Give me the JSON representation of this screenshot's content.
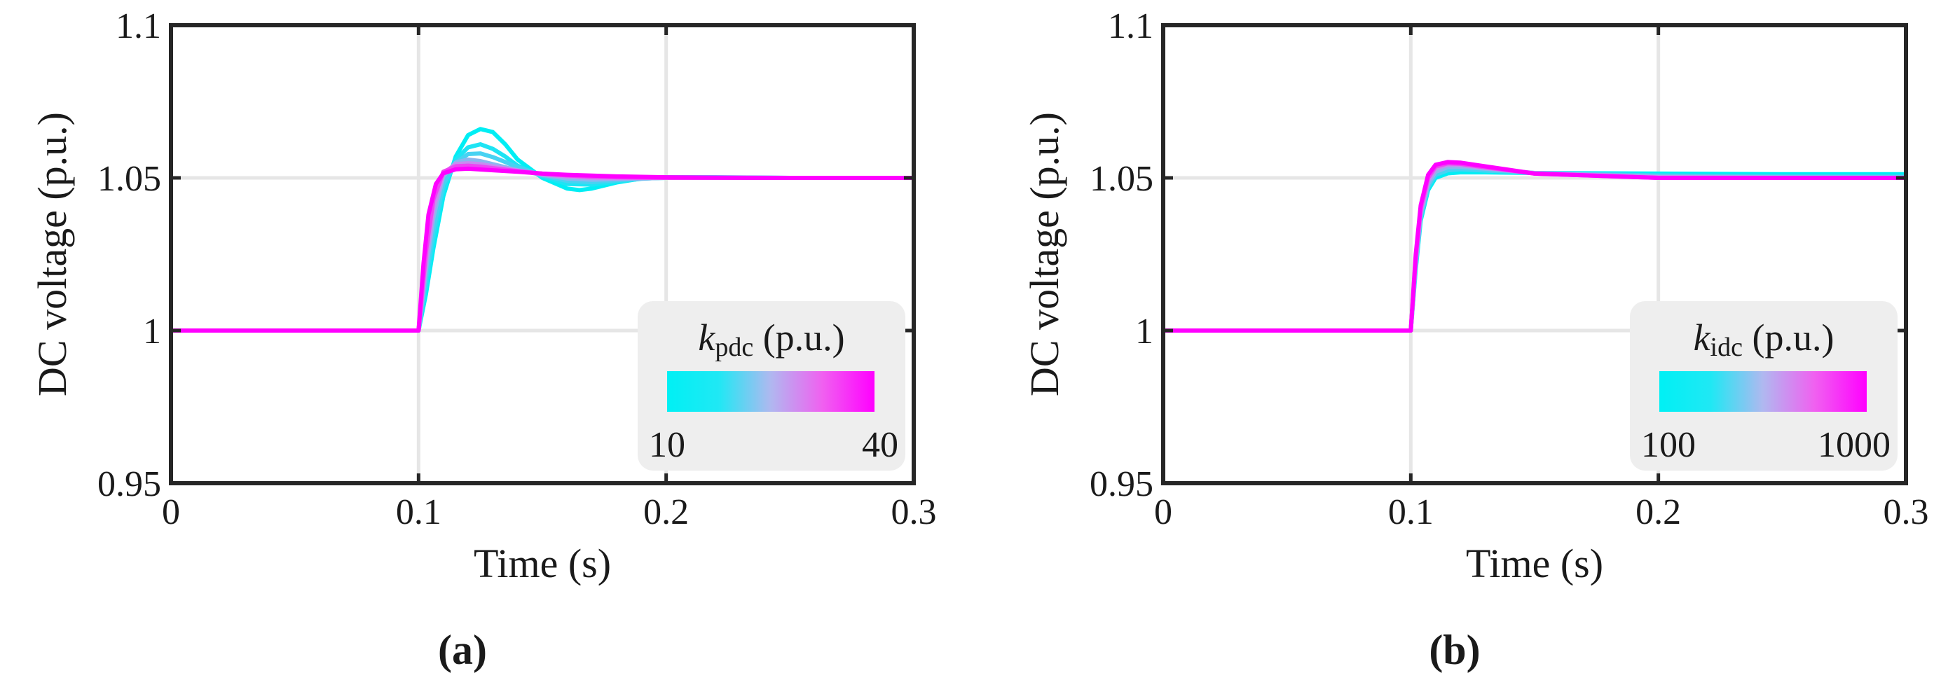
{
  "chart_data": [
    {
      "type": "line",
      "panel_label": "(a)",
      "xlabel": "Time (s)",
      "ylabel": "DC voltage (p.u.)",
      "xlim": [
        0,
        0.3
      ],
      "ylim": [
        0.95,
        1.1
      ],
      "xticks": [
        0,
        0.1,
        0.2,
        0.3
      ],
      "xtick_labels": [
        "0",
        "0.1",
        "0.2",
        "0.3"
      ],
      "yticks": [
        0.95,
        1,
        1.05,
        1.1
      ],
      "ytick_labels": [
        "0.95",
        "1",
        "1.05",
        "1.1"
      ],
      "grid": true,
      "colorbar": {
        "label_italic": "k",
        "label_sub": "pdc",
        "label_unit": " (p.u.)",
        "min_label": "10",
        "max_label": "40",
        "colors": [
          "#00f0f4",
          "#20e8f4",
          "#b0b8f0",
          "#f060f0",
          "#ff00ff"
        ],
        "placement": "bottom-right"
      },
      "series": [
        {
          "color": "#00eef4",
          "x": [
            0,
            0.1,
            0.103,
            0.106,
            0.11,
            0.115,
            0.12,
            0.125,
            0.13,
            0.135,
            0.14,
            0.15,
            0.16,
            0.165,
            0.17,
            0.18,
            0.19,
            0.2,
            0.22,
            0.25,
            0.3
          ],
          "y": [
            1,
            1,
            1.012,
            1.027,
            1.044,
            1.057,
            1.064,
            1.066,
            1.065,
            1.061,
            1.056,
            1.05,
            1.0465,
            1.046,
            1.0465,
            1.0485,
            1.0498,
            1.0502,
            1.0502,
            1.05,
            1.05
          ]
        },
        {
          "color": "#1ee4f4",
          "x": [
            0,
            0.1,
            0.103,
            0.106,
            0.11,
            0.115,
            0.12,
            0.125,
            0.13,
            0.135,
            0.14,
            0.15,
            0.16,
            0.17,
            0.18,
            0.19,
            0.2,
            0.22,
            0.25,
            0.3
          ],
          "y": [
            1,
            1,
            1.014,
            1.03,
            1.046,
            1.056,
            1.06,
            1.061,
            1.0595,
            1.057,
            1.054,
            1.0505,
            1.048,
            1.0478,
            1.0488,
            1.0497,
            1.0501,
            1.0501,
            1.05,
            1.05
          ]
        },
        {
          "color": "#48d2f2",
          "x": [
            0,
            0.1,
            0.103,
            0.106,
            0.11,
            0.115,
            0.12,
            0.125,
            0.13,
            0.135,
            0.14,
            0.15,
            0.16,
            0.17,
            0.18,
            0.19,
            0.2,
            0.22,
            0.25,
            0.3
          ],
          "y": [
            1,
            1,
            1.017,
            1.033,
            1.048,
            1.055,
            1.0578,
            1.058,
            1.0568,
            1.0552,
            1.0535,
            1.0508,
            1.049,
            1.0486,
            1.0492,
            1.0498,
            1.05,
            1.05,
            1.05,
            1.05
          ]
        },
        {
          "color": "#8cb6ef",
          "x": [
            0,
            0.1,
            0.103,
            0.106,
            0.11,
            0.115,
            0.12,
            0.125,
            0.13,
            0.14,
            0.15,
            0.16,
            0.17,
            0.18,
            0.2,
            0.25,
            0.3
          ],
          "y": [
            1,
            1,
            1.02,
            1.037,
            1.0505,
            1.055,
            1.056,
            1.0555,
            1.0545,
            1.0525,
            1.051,
            1.0498,
            1.0494,
            1.0496,
            1.05,
            1.05,
            1.05
          ]
        },
        {
          "color": "#c88cf0",
          "x": [
            0,
            0.1,
            0.103,
            0.106,
            0.11,
            0.115,
            0.12,
            0.125,
            0.13,
            0.14,
            0.15,
            0.16,
            0.17,
            0.18,
            0.2,
            0.25,
            0.3
          ],
          "y": [
            1,
            1,
            1.023,
            1.04,
            1.0515,
            1.0545,
            1.0548,
            1.0545,
            1.0538,
            1.0524,
            1.0512,
            1.0504,
            1.05,
            1.0499,
            1.05,
            1.05,
            1.05
          ]
        },
        {
          "color": "#ee44f2",
          "x": [
            0,
            0.1,
            0.103,
            0.106,
            0.11,
            0.115,
            0.12,
            0.125,
            0.13,
            0.14,
            0.15,
            0.16,
            0.17,
            0.18,
            0.2,
            0.25,
            0.3
          ],
          "y": [
            1,
            1,
            1.026,
            1.043,
            1.052,
            1.0538,
            1.054,
            1.0537,
            1.0532,
            1.0522,
            1.0514,
            1.0508,
            1.0504,
            1.0502,
            1.05,
            1.05,
            1.05
          ]
        },
        {
          "color": "#ff00ff",
          "x": [
            0,
            0.1,
            0.102,
            0.104,
            0.107,
            0.11,
            0.115,
            0.12,
            0.13,
            0.14,
            0.15,
            0.16,
            0.18,
            0.2,
            0.25,
            0.3
          ],
          "y": [
            1,
            1,
            1.022,
            1.038,
            1.048,
            1.0515,
            1.0528,
            1.053,
            1.0525,
            1.052,
            1.0514,
            1.051,
            1.0505,
            1.0502,
            1.05,
            1.05
          ]
        }
      ]
    },
    {
      "type": "line",
      "panel_label": "(b)",
      "xlabel": "Time (s)",
      "ylabel": "DC voltage (p.u.)",
      "xlim": [
        0,
        0.3
      ],
      "ylim": [
        0.95,
        1.1
      ],
      "xticks": [
        0,
        0.1,
        0.2,
        0.3
      ],
      "xtick_labels": [
        "0",
        "0.1",
        "0.2",
        "0.3"
      ],
      "yticks": [
        0.95,
        1,
        1.05,
        1.1
      ],
      "ytick_labels": [
        "0.95",
        "1",
        "1.05",
        "1.1"
      ],
      "grid": true,
      "colorbar": {
        "label_italic": "k",
        "label_sub": "idc",
        "label_unit": " (p.u.)",
        "min_label": "100",
        "max_label": "1000",
        "colors": [
          "#00f0f4",
          "#20e8f4",
          "#b0b8f0",
          "#f060f0",
          "#ff00ff"
        ],
        "placement": "bottom-right"
      },
      "series": [
        {
          "color": "#00eef4",
          "x": [
            0,
            0.1,
            0.102,
            0.104,
            0.107,
            0.11,
            0.115,
            0.12,
            0.13,
            0.15,
            0.2,
            0.25,
            0.3
          ],
          "y": [
            1,
            1,
            1.02,
            1.036,
            1.046,
            1.05,
            1.0515,
            1.0518,
            1.0518,
            1.0516,
            1.0514,
            1.0512,
            1.0512
          ]
        },
        {
          "color": "#48d2f2",
          "x": [
            0,
            0.1,
            0.102,
            0.104,
            0.107,
            0.11,
            0.115,
            0.12,
            0.13,
            0.15,
            0.2,
            0.25,
            0.3
          ],
          "y": [
            1,
            1,
            1.021,
            1.037,
            1.047,
            1.051,
            1.0525,
            1.0528,
            1.0524,
            1.0516,
            1.0508,
            1.0505,
            1.0504
          ]
        },
        {
          "color": "#8cb6ef",
          "x": [
            0,
            0.1,
            0.102,
            0.104,
            0.107,
            0.11,
            0.115,
            0.12,
            0.13,
            0.15,
            0.2,
            0.25,
            0.3
          ],
          "y": [
            1,
            1,
            1.022,
            1.038,
            1.048,
            1.052,
            1.0535,
            1.0536,
            1.053,
            1.0516,
            1.0504,
            1.0502,
            1.0501
          ]
        },
        {
          "color": "#c88cf0",
          "x": [
            0,
            0.1,
            0.102,
            0.104,
            0.107,
            0.11,
            0.115,
            0.12,
            0.13,
            0.15,
            0.2,
            0.25,
            0.3
          ],
          "y": [
            1,
            1,
            1.023,
            1.039,
            1.049,
            1.053,
            1.0543,
            1.0542,
            1.0533,
            1.0515,
            1.0502,
            1.05,
            1.05
          ]
        },
        {
          "color": "#ee44f2",
          "x": [
            0,
            0.1,
            0.102,
            0.104,
            0.107,
            0.11,
            0.115,
            0.12,
            0.13,
            0.15,
            0.2,
            0.25,
            0.3
          ],
          "y": [
            1,
            1,
            1.024,
            1.04,
            1.05,
            1.0537,
            1.0548,
            1.0546,
            1.0535,
            1.0514,
            1.05,
            1.05,
            1.05
          ]
        },
        {
          "color": "#ff00ff",
          "x": [
            0,
            0.1,
            0.102,
            0.104,
            0.107,
            0.11,
            0.115,
            0.12,
            0.13,
            0.15,
            0.2,
            0.25,
            0.3
          ],
          "y": [
            1,
            1,
            1.025,
            1.041,
            1.051,
            1.0543,
            1.0552,
            1.055,
            1.0538,
            1.0514,
            1.05,
            1.05,
            1.05
          ]
        }
      ]
    }
  ]
}
